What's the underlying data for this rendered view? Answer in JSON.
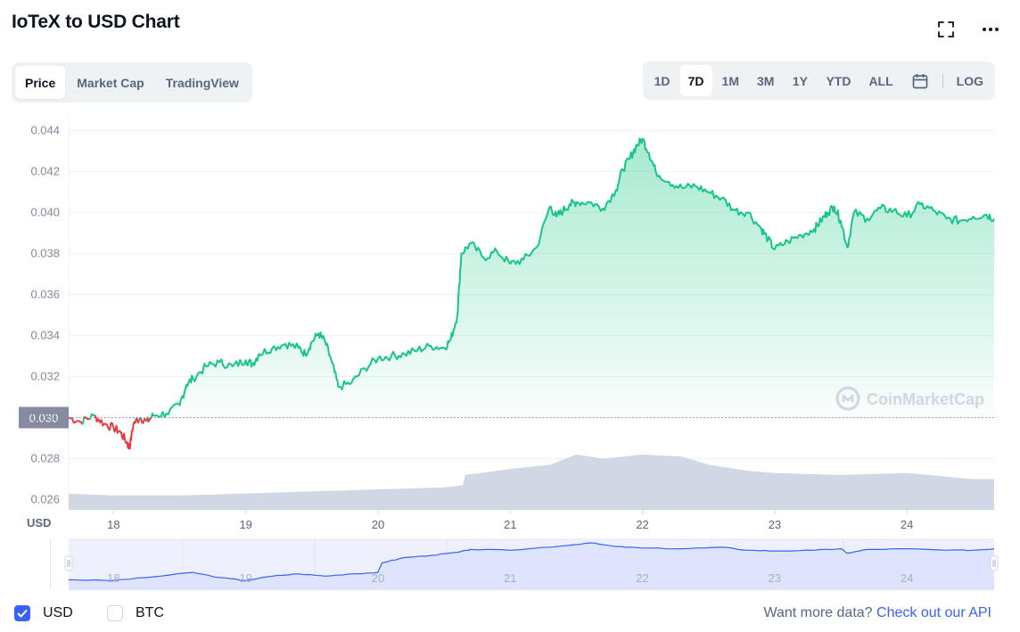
{
  "header": {
    "title": "IoTeX to USD Chart",
    "fullscreen_icon": "expand-icon",
    "more_icon": "more-horizontal-icon"
  },
  "tabs": [
    {
      "label": "Price",
      "active": true
    },
    {
      "label": "Market Cap",
      "active": false
    },
    {
      "label": "TradingView",
      "active": false
    }
  ],
  "ranges": [
    {
      "label": "1D",
      "active": false
    },
    {
      "label": "7D",
      "active": true
    },
    {
      "label": "1M",
      "active": false
    },
    {
      "label": "3M",
      "active": false
    },
    {
      "label": "1Y",
      "active": false
    },
    {
      "label": "YTD",
      "active": false
    },
    {
      "label": "ALL",
      "active": false
    }
  ],
  "log_label": "LOG",
  "calendar_icon": "calendar-icon",
  "watermark": "CoinMarketCap",
  "colors": {
    "up": "#16c784",
    "down": "#ea3943",
    "volume": "#cfd6e4",
    "navigator": "#3861fb",
    "grid": "#eff2f5"
  },
  "chart_data": {
    "type": "area",
    "y_unit_label": "USD",
    "y_ticks": [
      "0.044",
      "0.042",
      "0.040",
      "0.038",
      "0.036",
      "0.034",
      "0.032",
      "0.030",
      "0.028",
      "0.026"
    ],
    "ylim": [
      0.0255,
      0.0448
    ],
    "x_ticks": [
      "18",
      "19",
      "20",
      "21",
      "22",
      "23",
      "24"
    ],
    "x_tick_positions": [
      18,
      19,
      20,
      21,
      22,
      23,
      24
    ],
    "xlim": [
      17.66,
      24.66
    ],
    "baseline": 0.03,
    "baseline_label": "0.030",
    "grid": true,
    "series": [
      {
        "x": [
          17.66,
          17.75,
          17.85,
          17.93,
          18.0,
          18.05,
          18.1,
          18.12,
          18.15,
          18.2,
          18.25,
          18.3,
          18.4,
          18.5,
          18.55,
          18.6,
          18.7,
          18.8,
          18.9,
          19.0,
          19.05,
          19.1,
          19.2,
          19.3,
          19.4,
          19.45,
          19.5,
          19.55,
          19.6,
          19.65,
          19.7,
          19.8,
          19.9,
          20.0,
          20.1,
          20.2,
          20.3,
          20.4,
          20.5,
          20.55,
          20.6,
          20.63,
          20.7,
          20.8,
          20.9,
          21.0,
          21.1,
          21.2,
          21.3,
          21.35,
          21.4,
          21.45,
          21.5,
          21.6,
          21.7,
          21.8,
          21.85,
          21.9,
          21.95,
          22.0,
          22.05,
          22.1,
          22.2,
          22.3,
          22.4,
          22.5,
          22.6,
          22.7,
          22.8,
          22.9,
          22.95,
          23.0,
          23.1,
          23.2,
          23.3,
          23.35,
          23.4,
          23.45,
          23.5,
          23.55,
          23.6,
          23.7,
          23.8,
          23.9,
          24.0,
          24.1,
          24.2,
          24.3,
          24.4,
          24.5,
          24.6,
          24.66
        ],
        "y": [
          0.03,
          0.0298,
          0.0301,
          0.0297,
          0.0295,
          0.0293,
          0.0288,
          0.0285,
          0.0297,
          0.03,
          0.0298,
          0.0301,
          0.0302,
          0.0306,
          0.0316,
          0.0319,
          0.0325,
          0.0327,
          0.0325,
          0.0328,
          0.0326,
          0.0331,
          0.0334,
          0.0336,
          0.0334,
          0.0331,
          0.0337,
          0.0341,
          0.0337,
          0.0327,
          0.0315,
          0.0317,
          0.0324,
          0.0329,
          0.033,
          0.0331,
          0.0333,
          0.0335,
          0.0334,
          0.0338,
          0.035,
          0.038,
          0.0385,
          0.0378,
          0.0381,
          0.0375,
          0.0377,
          0.0383,
          0.0403,
          0.0398,
          0.0401,
          0.0404,
          0.0405,
          0.0405,
          0.0402,
          0.0411,
          0.0421,
          0.0426,
          0.0432,
          0.0436,
          0.0429,
          0.042,
          0.0415,
          0.0412,
          0.0413,
          0.041,
          0.0407,
          0.0401,
          0.04,
          0.0392,
          0.0387,
          0.0382,
          0.0386,
          0.0389,
          0.0392,
          0.0396,
          0.04,
          0.0403,
          0.0396,
          0.0383,
          0.04,
          0.0397,
          0.0402,
          0.0401,
          0.0398,
          0.0404,
          0.0401,
          0.0397,
          0.0396,
          0.0398,
          0.0399,
          0.0397
        ]
      }
    ],
    "volume": {
      "x": [
        17.66,
        18.0,
        18.5,
        19.0,
        19.5,
        20.0,
        20.5,
        20.64,
        20.66,
        21.0,
        21.3,
        21.5,
        21.7,
        22.0,
        22.3,
        22.5,
        22.8,
        23.0,
        23.5,
        24.0,
        24.5,
        24.66
      ],
      "y": [
        0.0263,
        0.0262,
        0.0262,
        0.0263,
        0.0264,
        0.0265,
        0.0266,
        0.0267,
        0.0272,
        0.0275,
        0.0277,
        0.0282,
        0.028,
        0.0282,
        0.0281,
        0.0277,
        0.0274,
        0.0273,
        0.0272,
        0.0273,
        0.027,
        0.027
      ]
    },
    "navigator": {
      "x_ticks": [
        "18",
        "19",
        "20",
        "21",
        "22",
        "23",
        "24"
      ],
      "x": [
        17.66,
        18.0,
        18.3,
        18.6,
        18.8,
        19.0,
        19.2,
        19.4,
        19.6,
        19.8,
        20.0,
        20.03,
        20.2,
        20.4,
        20.6,
        20.7,
        21.0,
        21.4,
        21.6,
        21.8,
        22.0,
        22.3,
        22.6,
        22.8,
        23.0,
        23.3,
        23.5,
        23.55,
        23.7,
        24.0,
        24.3,
        24.5,
        24.66
      ],
      "y": [
        0.0299,
        0.0298,
        0.0303,
        0.0309,
        0.0302,
        0.0298,
        0.0304,
        0.0307,
        0.0304,
        0.0307,
        0.0309,
        0.0322,
        0.0329,
        0.0332,
        0.0336,
        0.034,
        0.0339,
        0.0345,
        0.0349,
        0.0344,
        0.0342,
        0.0341,
        0.0343,
        0.0339,
        0.0338,
        0.0339,
        0.0341,
        0.0335,
        0.034,
        0.0341,
        0.0339,
        0.0339,
        0.0341
      ]
    }
  },
  "footer": {
    "usd_label": "USD",
    "usd_checked": true,
    "btc_label": "BTC",
    "btc_checked": false,
    "more_text": "Want more data?",
    "api_link": "Check out our API"
  }
}
